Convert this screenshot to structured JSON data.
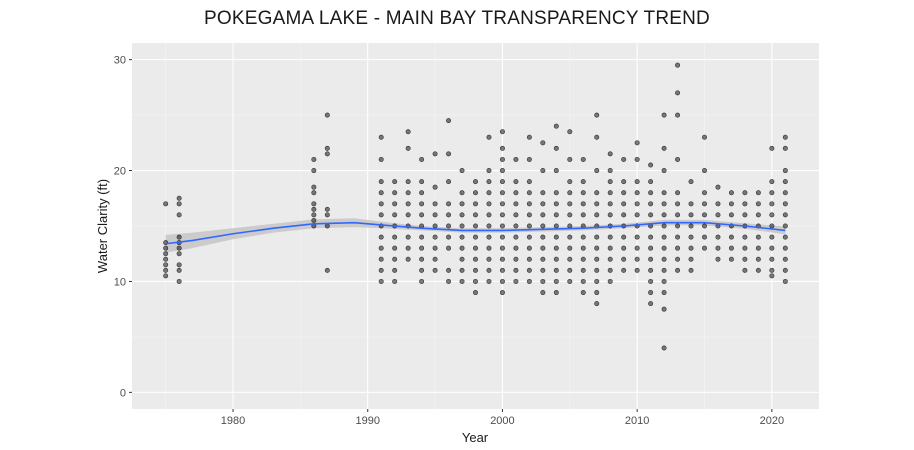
{
  "chart_data": {
    "type": "scatter",
    "title": "POKEGAMA LAKE - MAIN BAY TRANSPARENCY TREND",
    "xlabel": "Year",
    "ylabel": "Water Clarity (ft)",
    "xlim": [
      1972.5,
      2023.5
    ],
    "ylim": [
      -1.5,
      31.5
    ],
    "xticks": [
      1980,
      1990,
      2000,
      2010,
      2020
    ],
    "yticks": [
      0,
      10,
      20,
      30
    ],
    "grid": true,
    "background": "#ebebeb",
    "point_color": "#000000",
    "trend_color": "#3366ff",
    "ribbon_color": "#c8c8c8",
    "points": [
      [
        1975,
        17
      ],
      [
        1975,
        13.5
      ],
      [
        1975,
        12.5
      ],
      [
        1975,
        12
      ],
      [
        1975,
        11.5
      ],
      [
        1975,
        11
      ],
      [
        1975,
        10.5
      ],
      [
        1975,
        13
      ],
      [
        1976,
        17.5
      ],
      [
        1976,
        17
      ],
      [
        1976,
        16
      ],
      [
        1976,
        14
      ],
      [
        1976,
        13.5
      ],
      [
        1976,
        13
      ],
      [
        1976,
        12.5
      ],
      [
        1976,
        11.5
      ],
      [
        1976,
        11
      ],
      [
        1976,
        10
      ],
      [
        1986,
        21
      ],
      [
        1986,
        20
      ],
      [
        1986,
        18.5
      ],
      [
        1986,
        18
      ],
      [
        1986,
        17
      ],
      [
        1986,
        16.5
      ],
      [
        1986,
        16
      ],
      [
        1986,
        15.5
      ],
      [
        1986,
        15
      ],
      [
        1987,
        25
      ],
      [
        1987,
        22
      ],
      [
        1987,
        21.5
      ],
      [
        1987,
        16.5
      ],
      [
        1987,
        16
      ],
      [
        1987,
        15
      ],
      [
        1987,
        11
      ],
      [
        1991,
        23
      ],
      [
        1991,
        21
      ],
      [
        1991,
        19
      ],
      [
        1991,
        18
      ],
      [
        1991,
        17
      ],
      [
        1991,
        16
      ],
      [
        1991,
        15
      ],
      [
        1991,
        14
      ],
      [
        1991,
        13
      ],
      [
        1991,
        12
      ],
      [
        1991,
        11
      ],
      [
        1991,
        10
      ],
      [
        1992,
        19
      ],
      [
        1992,
        18
      ],
      [
        1992,
        17
      ],
      [
        1992,
        16
      ],
      [
        1992,
        15
      ],
      [
        1992,
        14
      ],
      [
        1992,
        13
      ],
      [
        1992,
        12
      ],
      [
        1992,
        11
      ],
      [
        1992,
        10
      ],
      [
        1993,
        23.5
      ],
      [
        1993,
        22
      ],
      [
        1993,
        19
      ],
      [
        1993,
        18
      ],
      [
        1993,
        17
      ],
      [
        1993,
        16
      ],
      [
        1993,
        15
      ],
      [
        1993,
        14
      ],
      [
        1993,
        13
      ],
      [
        1993,
        12
      ],
      [
        1994,
        21
      ],
      [
        1994,
        19
      ],
      [
        1994,
        18
      ],
      [
        1994,
        17
      ],
      [
        1994,
        16
      ],
      [
        1994,
        15
      ],
      [
        1994,
        14
      ],
      [
        1994,
        13
      ],
      [
        1994,
        12
      ],
      [
        1994,
        11
      ],
      [
        1994,
        10
      ],
      [
        1995,
        21.5
      ],
      [
        1995,
        18.5
      ],
      [
        1995,
        17
      ],
      [
        1995,
        16
      ],
      [
        1995,
        15
      ],
      [
        1995,
        14
      ],
      [
        1995,
        13
      ],
      [
        1995,
        12
      ],
      [
        1995,
        11
      ],
      [
        1996,
        24.5
      ],
      [
        1996,
        21.5
      ],
      [
        1996,
        19
      ],
      [
        1996,
        17
      ],
      [
        1996,
        16
      ],
      [
        1996,
        15
      ],
      [
        1996,
        14
      ],
      [
        1996,
        13
      ],
      [
        1996,
        11
      ],
      [
        1996,
        10
      ],
      [
        1997,
        20
      ],
      [
        1997,
        18
      ],
      [
        1997,
        17
      ],
      [
        1997,
        16
      ],
      [
        1997,
        15
      ],
      [
        1997,
        14
      ],
      [
        1997,
        13
      ],
      [
        1997,
        12
      ],
      [
        1997,
        11
      ],
      [
        1997,
        10
      ],
      [
        1998,
        19
      ],
      [
        1998,
        18
      ],
      [
        1998,
        17
      ],
      [
        1998,
        16
      ],
      [
        1998,
        15
      ],
      [
        1998,
        14
      ],
      [
        1998,
        13
      ],
      [
        1998,
        12
      ],
      [
        1998,
        11
      ],
      [
        1998,
        10
      ],
      [
        1998,
        9
      ],
      [
        1999,
        23
      ],
      [
        1999,
        20
      ],
      [
        1999,
        19
      ],
      [
        1999,
        18
      ],
      [
        1999,
        17
      ],
      [
        1999,
        16
      ],
      [
        1999,
        15
      ],
      [
        1999,
        14
      ],
      [
        1999,
        13
      ],
      [
        1999,
        12
      ],
      [
        1999,
        11
      ],
      [
        1999,
        10
      ],
      [
        2000,
        23.5
      ],
      [
        2000,
        22
      ],
      [
        2000,
        21
      ],
      [
        2000,
        20
      ],
      [
        2000,
        19
      ],
      [
        2000,
        18
      ],
      [
        2000,
        17
      ],
      [
        2000,
        16
      ],
      [
        2000,
        15
      ],
      [
        2000,
        14
      ],
      [
        2000,
        13
      ],
      [
        2000,
        12
      ],
      [
        2000,
        11
      ],
      [
        2000,
        10
      ],
      [
        2000,
        9
      ],
      [
        2001,
        21
      ],
      [
        2001,
        19
      ],
      [
        2001,
        18
      ],
      [
        2001,
        17
      ],
      [
        2001,
        16
      ],
      [
        2001,
        15
      ],
      [
        2001,
        14
      ],
      [
        2001,
        13
      ],
      [
        2001,
        12
      ],
      [
        2001,
        11
      ],
      [
        2001,
        10
      ],
      [
        2002,
        23
      ],
      [
        2002,
        21
      ],
      [
        2002,
        19
      ],
      [
        2002,
        18
      ],
      [
        2002,
        17
      ],
      [
        2002,
        16
      ],
      [
        2002,
        15
      ],
      [
        2002,
        14
      ],
      [
        2002,
        13
      ],
      [
        2002,
        12
      ],
      [
        2002,
        11
      ],
      [
        2002,
        10
      ],
      [
        2003,
        22.5
      ],
      [
        2003,
        20
      ],
      [
        2003,
        18
      ],
      [
        2003,
        17
      ],
      [
        2003,
        16
      ],
      [
        2003,
        15
      ],
      [
        2003,
        14
      ],
      [
        2003,
        13
      ],
      [
        2003,
        12
      ],
      [
        2003,
        11
      ],
      [
        2003,
        10
      ],
      [
        2003,
        9
      ],
      [
        2004,
        24
      ],
      [
        2004,
        22
      ],
      [
        2004,
        20
      ],
      [
        2004,
        18
      ],
      [
        2004,
        17
      ],
      [
        2004,
        16
      ],
      [
        2004,
        15
      ],
      [
        2004,
        14
      ],
      [
        2004,
        13
      ],
      [
        2004,
        12
      ],
      [
        2004,
        11
      ],
      [
        2004,
        10
      ],
      [
        2004,
        9
      ],
      [
        2005,
        23.5
      ],
      [
        2005,
        21
      ],
      [
        2005,
        19
      ],
      [
        2005,
        18
      ],
      [
        2005,
        17
      ],
      [
        2005,
        16
      ],
      [
        2005,
        15
      ],
      [
        2005,
        14
      ],
      [
        2005,
        13
      ],
      [
        2005,
        12
      ],
      [
        2005,
        11
      ],
      [
        2005,
        10
      ],
      [
        2006,
        21
      ],
      [
        2006,
        19
      ],
      [
        2006,
        18
      ],
      [
        2006,
        17
      ],
      [
        2006,
        16
      ],
      [
        2006,
        15
      ],
      [
        2006,
        14
      ],
      [
        2006,
        13
      ],
      [
        2006,
        12
      ],
      [
        2006,
        11
      ],
      [
        2006,
        10
      ],
      [
        2006,
        9
      ],
      [
        2007,
        25
      ],
      [
        2007,
        23
      ],
      [
        2007,
        20
      ],
      [
        2007,
        18
      ],
      [
        2007,
        17
      ],
      [
        2007,
        16
      ],
      [
        2007,
        15
      ],
      [
        2007,
        14
      ],
      [
        2007,
        13
      ],
      [
        2007,
        12
      ],
      [
        2007,
        11
      ],
      [
        2007,
        10
      ],
      [
        2007,
        9
      ],
      [
        2007,
        8
      ],
      [
        2008,
        21.5
      ],
      [
        2008,
        20
      ],
      [
        2008,
        19
      ],
      [
        2008,
        18
      ],
      [
        2008,
        17
      ],
      [
        2008,
        16
      ],
      [
        2008,
        15
      ],
      [
        2008,
        14
      ],
      [
        2008,
        13
      ],
      [
        2008,
        12
      ],
      [
        2008,
        11
      ],
      [
        2008,
        10
      ],
      [
        2009,
        21
      ],
      [
        2009,
        19
      ],
      [
        2009,
        18
      ],
      [
        2009,
        17
      ],
      [
        2009,
        16
      ],
      [
        2009,
        15
      ],
      [
        2009,
        14
      ],
      [
        2009,
        13
      ],
      [
        2009,
        12
      ],
      [
        2009,
        11
      ],
      [
        2010,
        22.5
      ],
      [
        2010,
        21
      ],
      [
        2010,
        19
      ],
      [
        2010,
        18
      ],
      [
        2010,
        17
      ],
      [
        2010,
        16
      ],
      [
        2010,
        15
      ],
      [
        2010,
        14
      ],
      [
        2010,
        13
      ],
      [
        2010,
        12
      ],
      [
        2010,
        11
      ],
      [
        2011,
        20.5
      ],
      [
        2011,
        19
      ],
      [
        2011,
        18
      ],
      [
        2011,
        17
      ],
      [
        2011,
        16
      ],
      [
        2011,
        15
      ],
      [
        2011,
        14
      ],
      [
        2011,
        13
      ],
      [
        2011,
        12
      ],
      [
        2011,
        11
      ],
      [
        2011,
        10
      ],
      [
        2011,
        9
      ],
      [
        2011,
        8
      ],
      [
        2012,
        25
      ],
      [
        2012,
        22
      ],
      [
        2012,
        20
      ],
      [
        2012,
        18
      ],
      [
        2012,
        17
      ],
      [
        2012,
        16
      ],
      [
        2012,
        15
      ],
      [
        2012,
        14
      ],
      [
        2012,
        13
      ],
      [
        2012,
        12
      ],
      [
        2012,
        11
      ],
      [
        2012,
        10
      ],
      [
        2012,
        9
      ],
      [
        2012,
        7.5
      ],
      [
        2012,
        4
      ],
      [
        2013,
        29.5
      ],
      [
        2013,
        27
      ],
      [
        2013,
        25
      ],
      [
        2013,
        21
      ],
      [
        2013,
        18
      ],
      [
        2013,
        17
      ],
      [
        2013,
        16
      ],
      [
        2013,
        15
      ],
      [
        2013,
        14
      ],
      [
        2013,
        13
      ],
      [
        2013,
        12
      ],
      [
        2013,
        11
      ],
      [
        2014,
        19
      ],
      [
        2014,
        17
      ],
      [
        2014,
        16
      ],
      [
        2014,
        15
      ],
      [
        2014,
        14
      ],
      [
        2014,
        13
      ],
      [
        2014,
        12
      ],
      [
        2014,
        11
      ],
      [
        2015,
        23
      ],
      [
        2015,
        20
      ],
      [
        2015,
        18
      ],
      [
        2015,
        17
      ],
      [
        2015,
        16
      ],
      [
        2015,
        15
      ],
      [
        2015,
        14
      ],
      [
        2015,
        13
      ],
      [
        2016,
        18.5
      ],
      [
        2016,
        17
      ],
      [
        2016,
        16
      ],
      [
        2016,
        15
      ],
      [
        2016,
        14
      ],
      [
        2016,
        13
      ],
      [
        2016,
        12
      ],
      [
        2017,
        18
      ],
      [
        2017,
        17
      ],
      [
        2017,
        16
      ],
      [
        2017,
        15
      ],
      [
        2017,
        14
      ],
      [
        2017,
        13
      ],
      [
        2017,
        12
      ],
      [
        2018,
        18
      ],
      [
        2018,
        17
      ],
      [
        2018,
        16
      ],
      [
        2018,
        15
      ],
      [
        2018,
        14
      ],
      [
        2018,
        13
      ],
      [
        2018,
        12
      ],
      [
        2018,
        11
      ],
      [
        2019,
        18
      ],
      [
        2019,
        17
      ],
      [
        2019,
        16
      ],
      [
        2019,
        15
      ],
      [
        2019,
        14
      ],
      [
        2019,
        13
      ],
      [
        2019,
        12
      ],
      [
        2019,
        11
      ],
      [
        2020,
        22
      ],
      [
        2020,
        19
      ],
      [
        2020,
        18
      ],
      [
        2020,
        17
      ],
      [
        2020,
        16
      ],
      [
        2020,
        15
      ],
      [
        2020,
        14
      ],
      [
        2020,
        13
      ],
      [
        2020,
        12
      ],
      [
        2020,
        11
      ],
      [
        2020,
        10.5
      ],
      [
        2021,
        23
      ],
      [
        2021,
        22
      ],
      [
        2021,
        20
      ],
      [
        2021,
        19
      ],
      [
        2021,
        18
      ],
      [
        2021,
        17
      ],
      [
        2021,
        16
      ],
      [
        2021,
        15
      ],
      [
        2021,
        14
      ],
      [
        2021,
        13
      ],
      [
        2021,
        12
      ],
      [
        2021,
        11
      ],
      [
        2021,
        10
      ]
    ],
    "trend": [
      [
        1975,
        13.4
      ],
      [
        1977,
        13.7
      ],
      [
        1980,
        14.3
      ],
      [
        1983,
        14.8
      ],
      [
        1986,
        15.2
      ],
      [
        1989,
        15.3
      ],
      [
        1991,
        15.1
      ],
      [
        1994,
        14.8
      ],
      [
        1997,
        14.6
      ],
      [
        2000,
        14.6
      ],
      [
        2003,
        14.7
      ],
      [
        2006,
        14.8
      ],
      [
        2009,
        15.0
      ],
      [
        2012,
        15.3
      ],
      [
        2015,
        15.3
      ],
      [
        2018,
        15.0
      ],
      [
        2021,
        14.6
      ]
    ],
    "ribbon_halfwidth": [
      0.8,
      0.7,
      0.5,
      0.4,
      0.4,
      0.4,
      0.3,
      0.2,
      0.2,
      0.2,
      0.2,
      0.2,
      0.2,
      0.25,
      0.25,
      0.25,
      0.35
    ]
  }
}
